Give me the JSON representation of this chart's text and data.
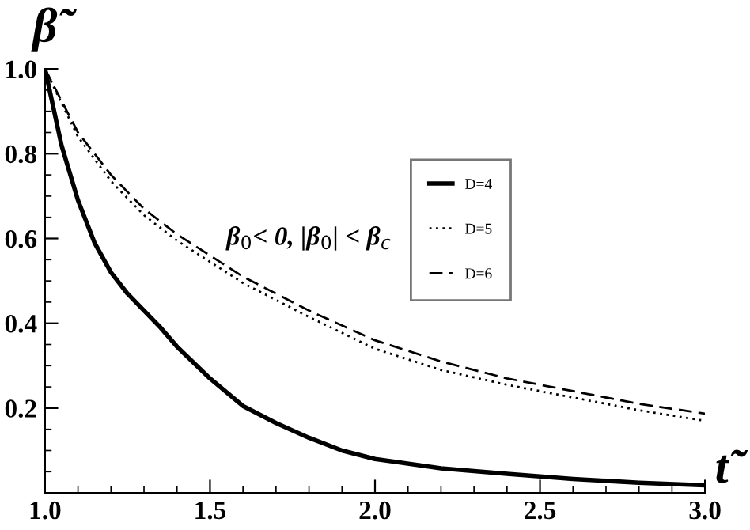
{
  "chart_data": {
    "type": "line",
    "xlabel": "t̃",
    "ylabel": "β̃",
    "annotations": [
      "β$_{0}$< 0, |β$_{0}$| < β$_{c}$"
    ],
    "xlim": [
      1.0,
      3.0
    ],
    "ylim": [
      0,
      1.0
    ],
    "xticks": [
      {
        "value": 1.0,
        "label": "1.0"
      },
      {
        "value": 1.1,
        "label": null
      },
      {
        "value": 1.2,
        "label": null
      },
      {
        "value": 1.3,
        "label": null
      },
      {
        "value": 1.4,
        "label": null
      },
      1.5,
      {
        "value": 1.6,
        "label": null
      },
      {
        "value": 1.7,
        "label": null
      },
      {
        "value": 1.8,
        "label": null
      },
      {
        "value": 1.9,
        "label": null
      },
      {
        "value": 2.0,
        "label": "2.0"
      },
      {
        "value": 2.1,
        "label": null
      },
      {
        "value": 2.2,
        "label": null
      },
      {
        "value": 2.3,
        "label": null
      },
      {
        "value": 2.4,
        "label": null
      },
      2.5,
      {
        "value": 2.6,
        "label": null
      },
      {
        "value": 2.7,
        "label": null
      },
      {
        "value": 2.8,
        "label": null
      },
      {
        "value": 2.9,
        "label": null
      },
      {
        "value": 3.0,
        "label": "3.0"
      }
    ],
    "yticks": [
      {
        "value": 0.05,
        "label": null
      },
      {
        "value": 0.1,
        "label": null
      },
      {
        "value": 0.15,
        "label": null
      },
      0.2,
      {
        "value": 0.25,
        "label": null
      },
      {
        "value": 0.3,
        "label": null
      },
      {
        "value": 0.35,
        "label": null
      },
      0.4,
      {
        "value": 0.45,
        "label": null
      },
      {
        "value": 0.5,
        "label": null
      },
      {
        "value": 0.55,
        "label": null
      },
      0.6,
      {
        "value": 0.65,
        "label": null
      },
      {
        "value": 0.7,
        "label": null
      },
      {
        "value": 0.75,
        "label": null
      },
      0.8,
      {
        "value": 0.85,
        "label": null
      },
      {
        "value": 0.9,
        "label": null
      },
      {
        "value": 0.95,
        "label": null
      },
      {
        "value": 1.0,
        "label": "1.0"
      }
    ],
    "grid": false,
    "legend": "center",
    "marker": "none",
    "series": [
      {
        "name": "D=4",
        "color": "#000000",
        "line_style": "solid",
        "x": [
          1.0,
          1.05,
          1.1,
          1.15,
          1.2,
          1.25,
          1.3,
          1.35,
          1.4,
          1.5,
          1.6,
          1.7,
          1.8,
          1.9,
          2.0,
          2.2,
          2.4,
          2.6,
          2.8,
          3.0
        ],
        "values": [
          1.0,
          0.82,
          0.69,
          0.59,
          0.52,
          0.47,
          0.43,
          0.39,
          0.345,
          0.27,
          0.205,
          0.165,
          0.13,
          0.1,
          0.08,
          0.058,
          0.045,
          0.033,
          0.024,
          0.018
        ]
      },
      {
        "name": "D=5",
        "color": "#000000",
        "line_style": "dotted",
        "x": [
          1.0,
          1.1,
          1.2,
          1.3,
          1.4,
          1.5,
          1.6,
          1.8,
          2.0,
          2.2,
          2.4,
          2.6,
          2.8,
          3.0
        ],
        "values": [
          1.0,
          0.84,
          0.735,
          0.655,
          0.595,
          0.545,
          0.495,
          0.415,
          0.34,
          0.29,
          0.255,
          0.225,
          0.195,
          0.17
        ]
      },
      {
        "name": "D=6",
        "color": "#000000",
        "line_style": "dashed",
        "x": [
          1.0,
          1.1,
          1.2,
          1.3,
          1.4,
          1.5,
          1.6,
          1.8,
          2.0,
          2.2,
          2.4,
          2.6,
          2.8,
          3.0
        ],
        "values": [
          1.0,
          0.85,
          0.75,
          0.67,
          0.61,
          0.56,
          0.51,
          0.43,
          0.36,
          0.31,
          0.27,
          0.24,
          0.21,
          0.187
        ]
      }
    ]
  }
}
